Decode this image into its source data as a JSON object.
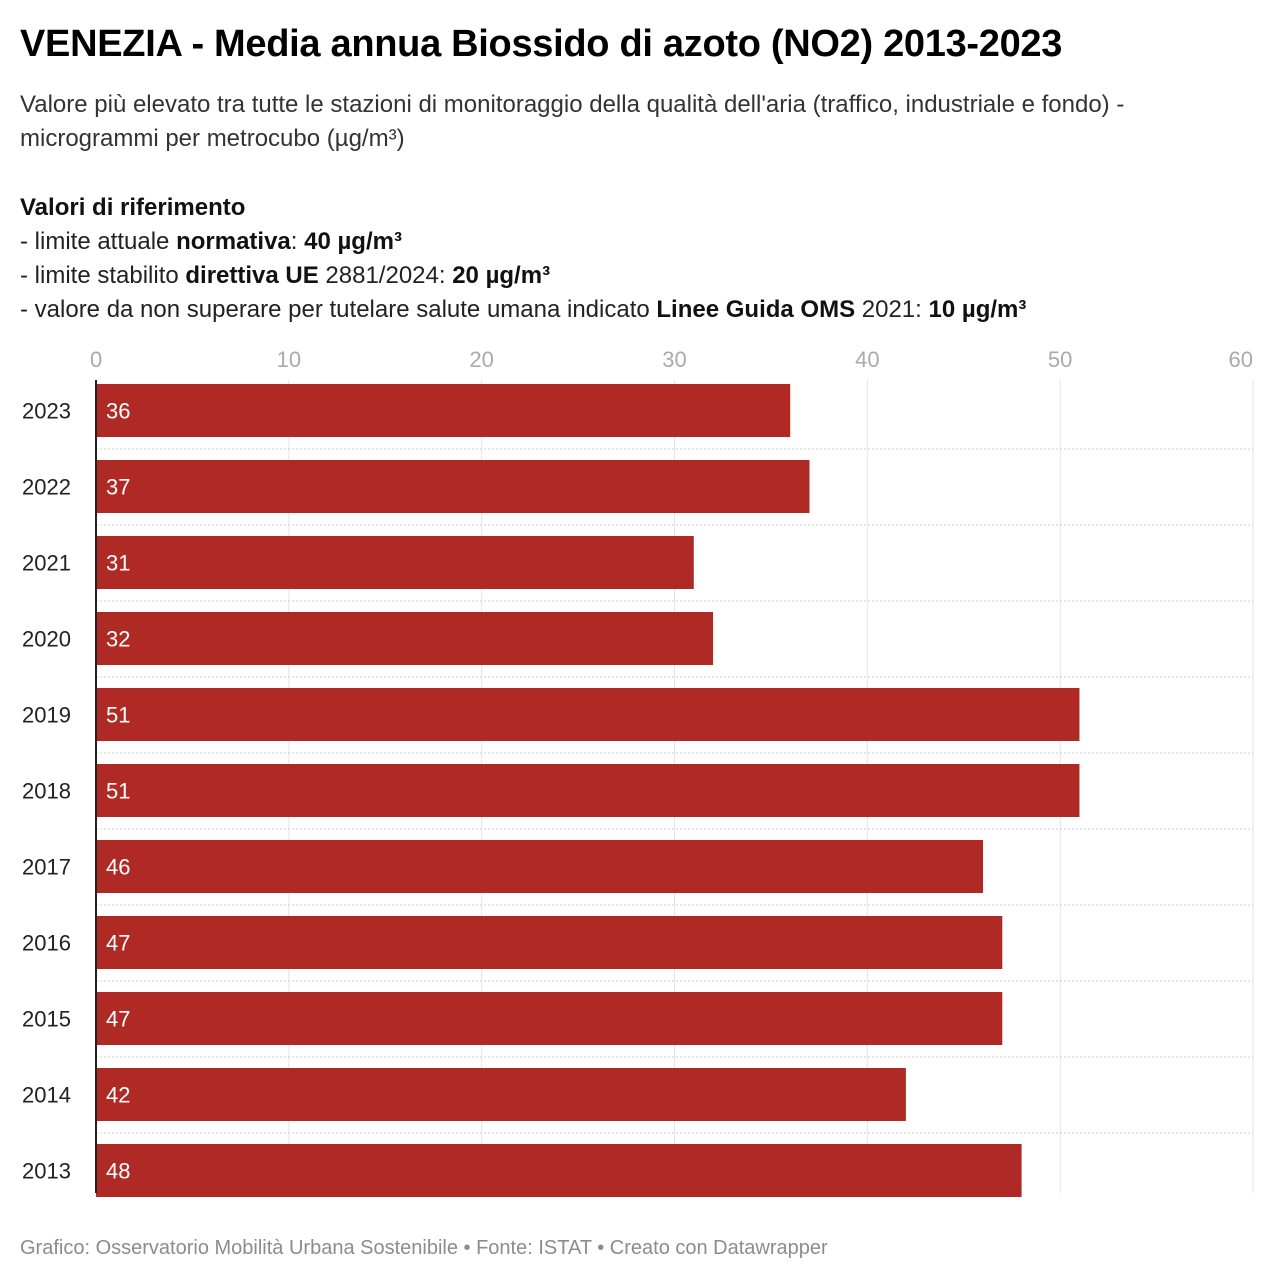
{
  "chart_data": {
    "type": "bar",
    "orientation": "horizontal",
    "title": "VENEZIA - Media annua Biossido di azoto (NO2) 2013-2023",
    "subtitle": "Valore più elevato tra tutte le stazioni di monitoraggio della qualità dell'aria (traffico, industriale e fondo) - microgrammi per metrocubo (µg/m³)",
    "categories": [
      "2023",
      "2022",
      "2021",
      "2020",
      "2019",
      "2018",
      "2017",
      "2016",
      "2015",
      "2014",
      "2013"
    ],
    "values": [
      36,
      37,
      31,
      32,
      51,
      51,
      46,
      47,
      47,
      42,
      48
    ],
    "xlim": [
      0,
      60
    ],
    "xticks": [
      0,
      10,
      20,
      30,
      40,
      50,
      60
    ],
    "grid": true,
    "bar_color": "#b02a25",
    "value_labels": true
  },
  "references": {
    "heading": "Valori di riferimento",
    "line1": {
      "pre": "- limite attuale ",
      "bold1": "normativa",
      "mid": ": ",
      "bold2": "40 µg/m³"
    },
    "line2": {
      "pre": "- limite stabilito ",
      "bold1": "direttiva UE",
      "mid": " 2881/2024: ",
      "bold2": "20 µg/m³"
    },
    "line3": {
      "pre": "- valore da non superare per tutelare salute umana indicato ",
      "bold1": "Linee Guida OMS",
      "mid": " 2021: ",
      "bold2": "10 µg/m³"
    }
  },
  "footer": "Grafico: Osservatorio Mobilità Urbana Sostenibile • Fonte: ISTAT • Creato con Datawrapper"
}
